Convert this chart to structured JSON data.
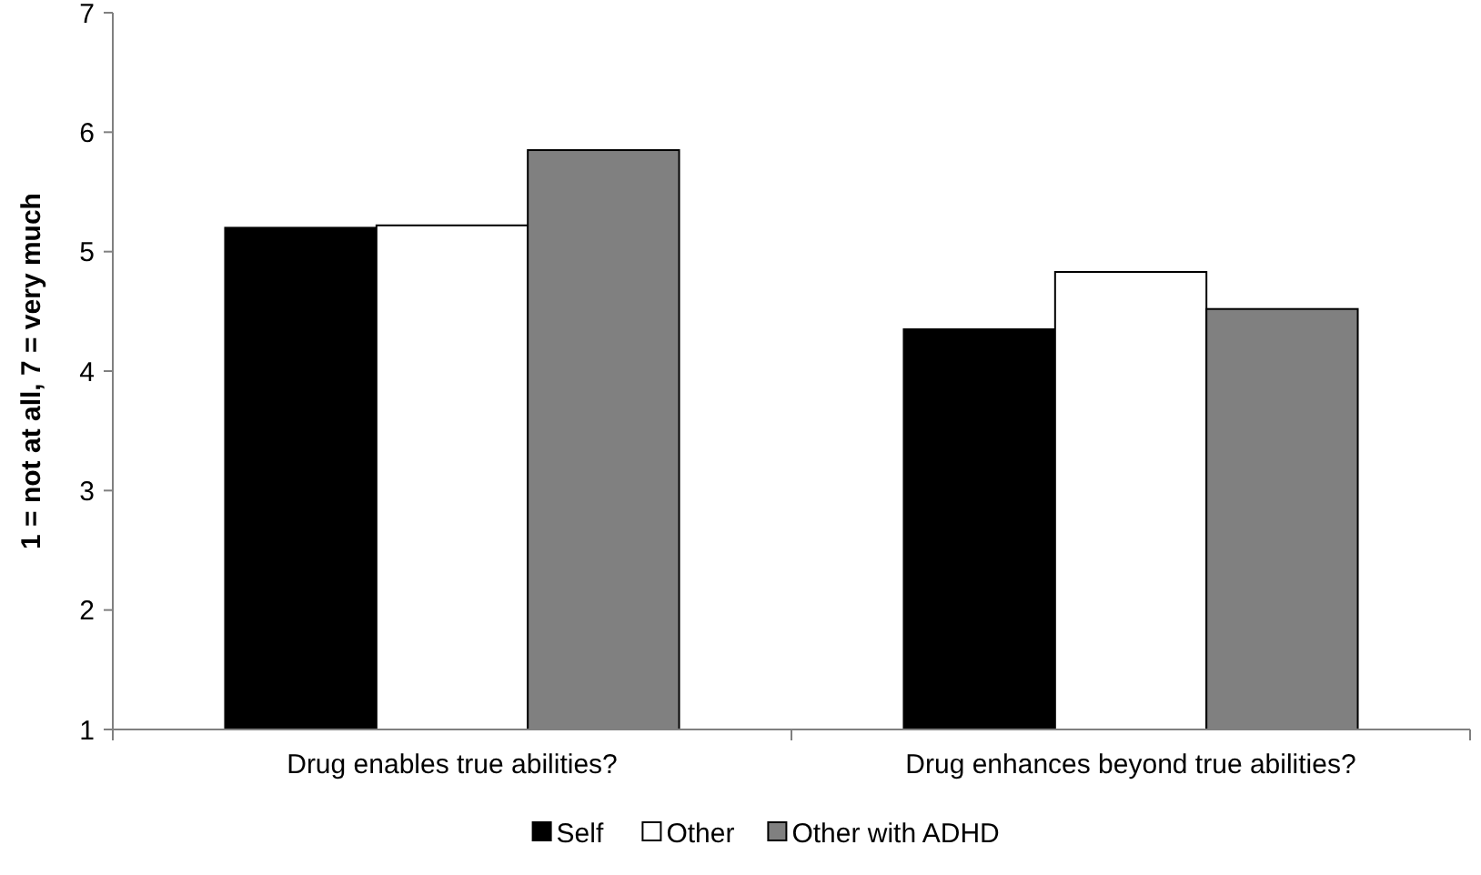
{
  "chart_data": {
    "type": "bar",
    "ylabel": "1 = not at all, 7 = very much",
    "categories": [
      "Drug enables true abilities?",
      "Drug enhances beyond true abilities?"
    ],
    "series": [
      {
        "name": "Self",
        "color": "#000000",
        "values": [
          5.2,
          4.35
        ]
      },
      {
        "name": "Other",
        "color": "#ffffff",
        "values": [
          5.22,
          4.83
        ]
      },
      {
        "name": "Other with ADHD",
        "color": "#808080",
        "values": [
          5.85,
          4.52
        ]
      }
    ],
    "ylim": [
      1,
      7
    ],
    "yticks": [
      1,
      2,
      3,
      4,
      5,
      6,
      7
    ],
    "grid": false,
    "legend": "bottom"
  }
}
